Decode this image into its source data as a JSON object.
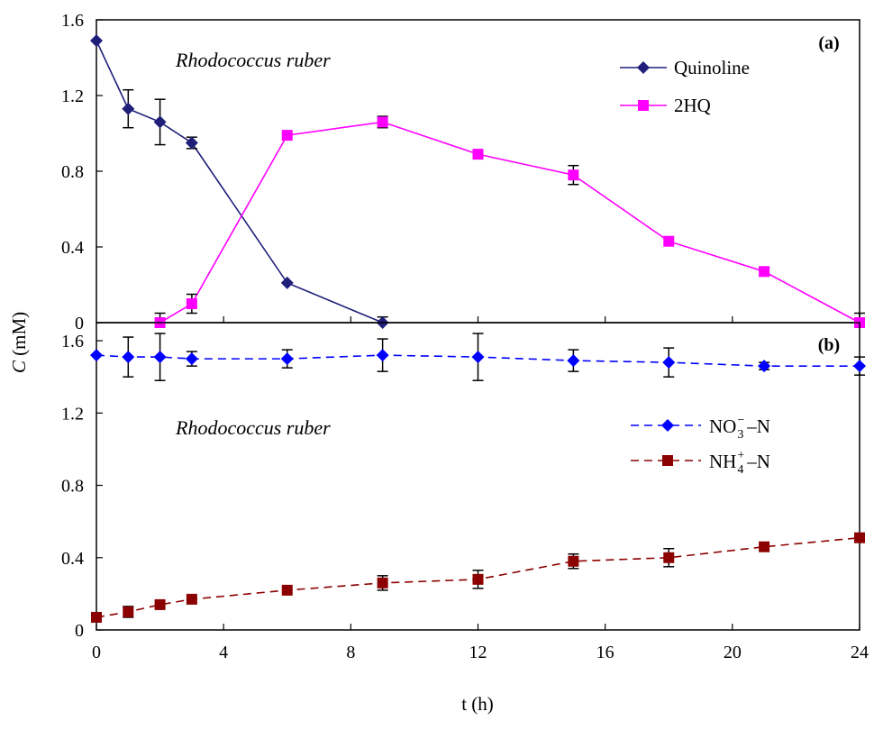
{
  "chart_data": [
    {
      "panel": "(a)",
      "type": "line",
      "annotation": "Rhodococcus ruber",
      "x": [
        0,
        1,
        2,
        3,
        6,
        9,
        12,
        15,
        18,
        21,
        24
      ],
      "xlim": [
        0,
        24
      ],
      "ylim": [
        0,
        1.6
      ],
      "yticks": [
        "0",
        "0.4",
        "0.8",
        "1.2",
        "1.6"
      ],
      "legend_position": "top-right",
      "grid": false,
      "series": [
        {
          "name": "Quinoline",
          "color": "#1F1F7A",
          "marker": "diamond",
          "dash": "solid",
          "x": [
            0,
            1,
            2,
            3,
            6,
            9
          ],
          "y": [
            1.49,
            1.13,
            1.06,
            0.95,
            0.21,
            0.0
          ],
          "err": [
            0,
            0.1,
            0.12,
            0.03,
            0,
            0.03
          ]
        },
        {
          "name": "2HQ",
          "color": "#FF00FF",
          "marker": "square",
          "dash": "solid",
          "x": [
            2,
            3,
            6,
            9,
            12,
            15,
            18,
            21,
            24
          ],
          "y": [
            0.0,
            0.1,
            0.99,
            1.06,
            0.89,
            0.78,
            0.43,
            0.27,
            0.0
          ],
          "err": [
            0.05,
            0.05,
            0,
            0.03,
            0,
            0.05,
            0,
            0.02,
            0.05
          ]
        }
      ]
    },
    {
      "panel": "(b)",
      "type": "line",
      "annotation": "Rhodococcus ruber",
      "x": [
        0,
        1,
        2,
        3,
        6,
        9,
        12,
        15,
        18,
        21,
        24
      ],
      "xlim": [
        0,
        24
      ],
      "ylim": [
        0,
        1.7
      ],
      "yticks": [
        "0",
        "0.4",
        "0.8",
        "1.2",
        "1.6"
      ],
      "xticks": [
        "0",
        "4",
        "8",
        "12",
        "16",
        "20",
        "24"
      ],
      "xlabel": "t (h)",
      "legend_position": "center-right",
      "grid": false,
      "series": [
        {
          "name": "NO3⁻–N",
          "legend_main": "NO",
          "legend_sub": "3",
          "legend_sup": "−",
          "legend_tail": "–N",
          "color": "#0000FF",
          "marker": "diamond",
          "dash": "dashed",
          "x": [
            0,
            1,
            2,
            3,
            6,
            9,
            12,
            15,
            18,
            21,
            24
          ],
          "y": [
            1.52,
            1.51,
            1.51,
            1.5,
            1.5,
            1.52,
            1.51,
            1.49,
            1.48,
            1.46,
            1.46
          ],
          "err": [
            0,
            0.11,
            0.13,
            0.04,
            0.05,
            0.09,
            0.13,
            0.06,
            0.08,
            0.02,
            0.05
          ]
        },
        {
          "name": "NH4⁺–N",
          "legend_main": "NH",
          "legend_sub": "4",
          "legend_sup": "+",
          "legend_tail": "–N",
          "color": "#8B0000",
          "marker": "square",
          "dash": "dashed",
          "x": [
            0,
            1,
            2,
            3,
            6,
            9,
            12,
            15,
            18,
            21,
            24
          ],
          "y": [
            0.07,
            0.1,
            0.14,
            0.17,
            0.22,
            0.26,
            0.28,
            0.38,
            0.4,
            0.46,
            0.51
          ],
          "err": [
            0,
            0.03,
            0,
            0,
            0,
            0.04,
            0.05,
            0.04,
            0.05,
            0,
            0
          ]
        }
      ]
    }
  ],
  "ylabel_italic": "C",
  "ylabel_rest": " (mM)"
}
